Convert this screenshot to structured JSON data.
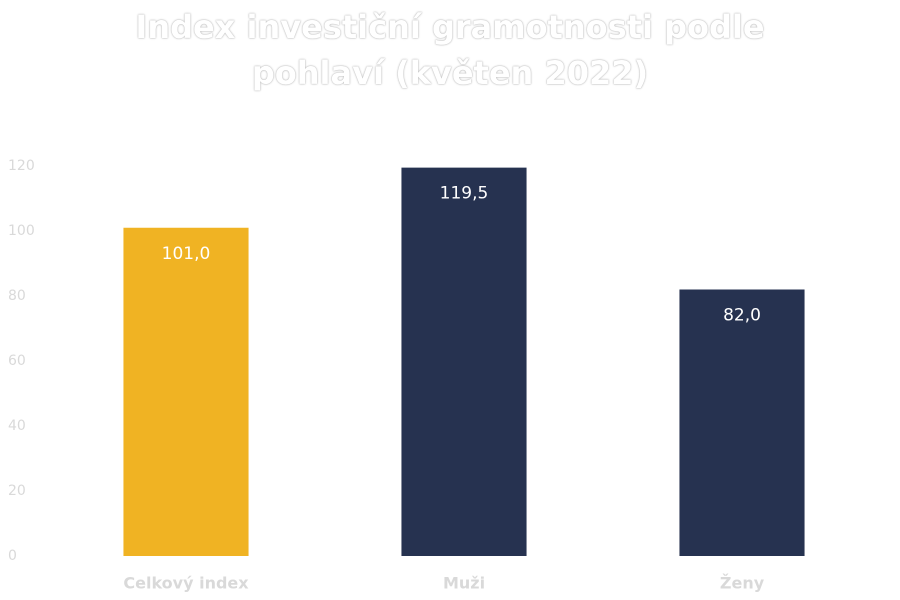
{
  "chart_data": {
    "type": "bar",
    "title": "Index investiční gramotnosti podle pohlaví (květen 2022)",
    "categories": [
      "Celkový index",
      "Muži",
      "Ženy"
    ],
    "values": [
      101.0,
      119.5,
      82.0
    ],
    "value_labels": [
      "101,0",
      "119,5",
      "82,0"
    ],
    "colors": [
      "#f0b323",
      "#263250",
      "#263250"
    ],
    "ylim": [
      0,
      120
    ],
    "yticks": [
      0,
      20,
      40,
      60,
      80,
      100,
      120
    ],
    "grid": false
  }
}
